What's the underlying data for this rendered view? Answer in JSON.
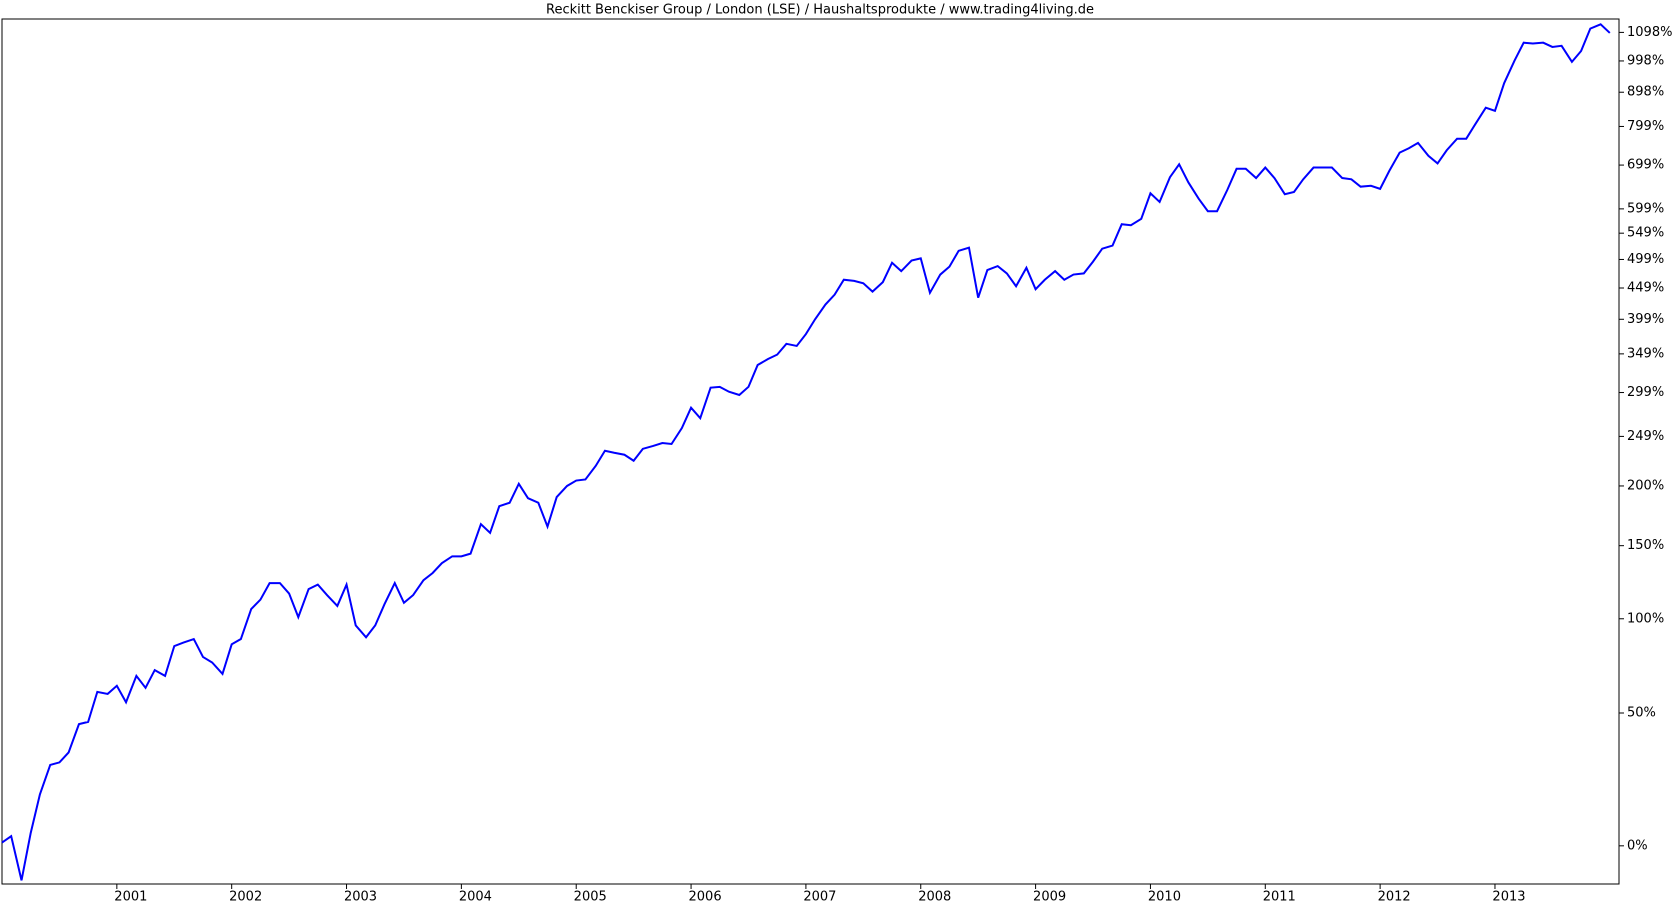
{
  "chart_data": {
    "type": "line",
    "title": "Reckitt Benckiser Group / London (LSE) / Haushaltsprodukte / www.trading4living.de",
    "log_scale": true,
    "grid": false,
    "xlim": [
      2000,
      2014.08
    ],
    "xticks": [
      2001,
      2002,
      2003,
      2004,
      2005,
      2006,
      2007,
      2008,
      2009,
      2010,
      2011,
      2012,
      2013
    ],
    "ylim": [
      -11,
      1148
    ],
    "yticks": [
      {
        "value": 0,
        "label": "0%"
      },
      {
        "value": 50,
        "label": "50%"
      },
      {
        "value": 100,
        "label": "100%"
      },
      {
        "value": 150,
        "label": "150%"
      },
      {
        "value": 200,
        "label": "200%"
      },
      {
        "value": 249,
        "label": "249%"
      },
      {
        "value": 299,
        "label": "299%"
      },
      {
        "value": 349,
        "label": "349%"
      },
      {
        "value": 399,
        "label": "399%"
      },
      {
        "value": 449,
        "label": "449%"
      },
      {
        "value": 499,
        "label": "499%"
      },
      {
        "value": 549,
        "label": "549%"
      },
      {
        "value": 599,
        "label": "599%"
      },
      {
        "value": 699,
        "label": "699%"
      },
      {
        "value": 799,
        "label": "799%"
      },
      {
        "value": 898,
        "label": "898%"
      },
      {
        "value": 998,
        "label": "998%"
      },
      {
        "value": 1098,
        "label": "1098%"
      }
    ],
    "x": [
      2000,
      2000.08,
      2000.17,
      2000.25,
      2000.33,
      2000.42,
      2000.5,
      2000.58,
      2000.67,
      2000.75,
      2000.83,
      2000.92,
      2001,
      2001.08,
      2001.17,
      2001.25,
      2001.33,
      2001.42,
      2001.5,
      2001.58,
      2001.67,
      2001.75,
      2001.83,
      2001.92,
      2002,
      2002.08,
      2002.17,
      2002.25,
      2002.33,
      2002.42,
      2002.5,
      2002.58,
      2002.67,
      2002.75,
      2002.83,
      2002.92,
      2003,
      2003.08,
      2003.17,
      2003.25,
      2003.33,
      2003.42,
      2003.5,
      2003.58,
      2003.67,
      2003.75,
      2003.83,
      2003.92,
      2004,
      2004.08,
      2004.17,
      2004.25,
      2004.33,
      2004.42,
      2004.5,
      2004.58,
      2004.67,
      2004.75,
      2004.83,
      2004.92,
      2005,
      2005.08,
      2005.17,
      2005.25,
      2005.33,
      2005.42,
      2005.5,
      2005.58,
      2005.67,
      2005.75,
      2005.83,
      2005.92,
      2006,
      2006.08,
      2006.17,
      2006.25,
      2006.33,
      2006.42,
      2006.5,
      2006.58,
      2006.67,
      2006.75,
      2006.83,
      2006.92,
      2007,
      2007.08,
      2007.17,
      2007.25,
      2007.33,
      2007.42,
      2007.5,
      2007.58,
      2007.67,
      2007.75,
      2007.83,
      2007.92,
      2008,
      2008.08,
      2008.17,
      2008.25,
      2008.33,
      2008.42,
      2008.5,
      2008.58,
      2008.67,
      2008.75,
      2008.83,
      2008.92,
      2009,
      2009.08,
      2009.17,
      2009.25,
      2009.33,
      2009.42,
      2009.5,
      2009.58,
      2009.67,
      2009.75,
      2009.83,
      2009.92,
      2010,
      2010.08,
      2010.17,
      2010.25,
      2010.33,
      2010.42,
      2010.5,
      2010.58,
      2010.67,
      2010.75,
      2010.83,
      2010.92,
      2011,
      2011.08,
      2011.17,
      2011.25,
      2011.33,
      2011.42,
      2011.5,
      2011.58,
      2011.67,
      2011.75,
      2011.83,
      2011.92,
      2012,
      2012.08,
      2012.17,
      2012.25,
      2012.33,
      2012.42,
      2012.5,
      2012.58,
      2012.67,
      2012.75,
      2012.83,
      2012.92,
      2013,
      2013.08,
      2013.17,
      2013.25,
      2013.33,
      2013.42,
      2013.5,
      2013.58,
      2013.67,
      2013.75,
      2013.83,
      2013.92,
      2014
    ],
    "series": [
      {
        "color": "#0000ff",
        "values": [
          1,
          3,
          -10,
          4,
          17,
          28,
          29,
          33,
          45,
          46,
          60,
          59,
          63,
          55,
          68,
          62,
          71,
          68,
          84,
          86,
          88,
          78,
          75,
          69,
          85,
          88,
          106,
          112,
          123,
          123,
          116,
          101,
          119,
          122,
          115,
          108,
          122,
          96,
          89,
          96,
          109,
          123,
          110,
          115,
          125,
          130,
          137,
          142,
          142,
          144,
          167,
          160,
          182,
          185,
          202,
          189,
          185,
          165,
          190,
          200,
          205,
          206,
          219,
          234,
          232,
          230,
          224,
          236,
          239,
          242,
          241,
          258,
          281,
          269,
          305,
          306,
          300,
          296,
          306,
          334,
          342,
          348,
          363,
          360,
          377,
          399,
          422,
          438,
          463,
          461,
          457,
          443,
          459,
          493,
          478,
          497,
          501,
          441,
          472,
          486,
          515,
          521,
          433,
          480,
          487,
          474,
          452,
          484,
          447,
          463,
          478,
          463,
          472,
          474,
          495,
          519,
          525,
          567,
          565,
          578,
          633,
          614,
          670,
          701,
          658,
          621,
          594,
          594,
          641,
          690,
          690,
          668,
          693,
          668,
          631,
          636,
          665,
          693,
          693,
          693,
          668,
          665,
          648,
          650,
          643,
          685,
          730,
          741,
          755,
          722,
          703,
          736,
          766,
          766,
          806,
          852,
          843,
          926,
          999,
          1061,
          1058,
          1061,
          1046,
          1050,
          995,
          1032,
          1112,
          1128,
          1096
        ]
      }
    ]
  }
}
